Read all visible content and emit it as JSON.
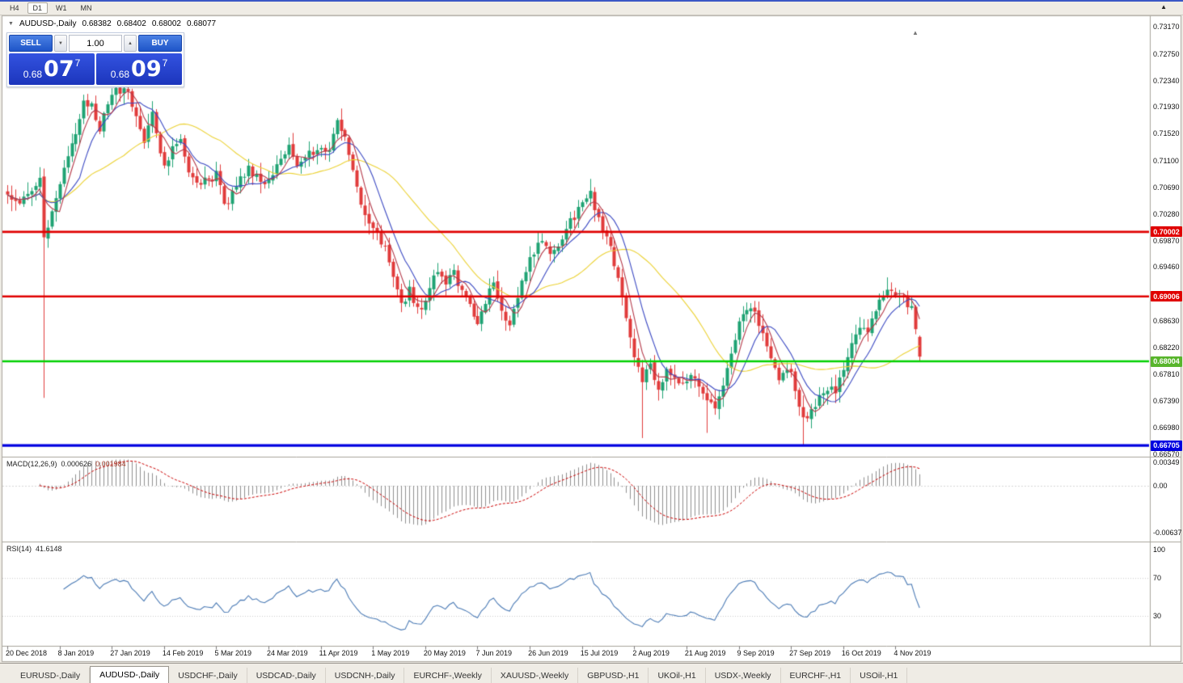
{
  "toolbar": {
    "timeframes": [
      {
        "label": "H4",
        "active": false
      },
      {
        "label": "D1",
        "active": true
      },
      {
        "label": "W1",
        "active": false
      },
      {
        "label": "MN",
        "active": false
      }
    ]
  },
  "icons": {
    "collapse": "▼",
    "spin_up": "▲",
    "spin_down": "▼",
    "shift_marker": "▲",
    "corner": "▲"
  },
  "chart_header": {
    "symbol": "AUDUSD-,Daily",
    "open": "0.68382",
    "high": "0.68402",
    "low": "0.68002",
    "close": "0.68077"
  },
  "trade_panel": {
    "sell_label": "SELL",
    "buy_label": "BUY",
    "volume": "1.00",
    "sell_price_prefix": "0.68",
    "sell_price_big": "07",
    "sell_price_sup": "7",
    "buy_price_prefix": "0.68",
    "buy_price_big": "09",
    "buy_price_sup": "7"
  },
  "tabs": [
    {
      "label": "EURUSD-,Daily",
      "active": false
    },
    {
      "label": "AUDUSD-,Daily",
      "active": true
    },
    {
      "label": "USDCHF-,Daily",
      "active": false
    },
    {
      "label": "USDCAD-,Daily",
      "active": false
    },
    {
      "label": "USDCNH-,Daily",
      "active": false
    },
    {
      "label": "EURCHF-,Weekly",
      "active": false
    },
    {
      "label": "XAUUSD-,Weekly",
      "active": false
    },
    {
      "label": "GBPUSD-,H1",
      "active": false
    },
    {
      "label": "UKOil-,H1",
      "active": false
    },
    {
      "label": "USDX-,Weekly",
      "active": false
    },
    {
      "label": "EURCHF-,H1",
      "active": false
    },
    {
      "label": "USOil-,H1",
      "active": false
    }
  ],
  "chart_data": {
    "type": "candlestick",
    "title": "AUDUSD-,Daily",
    "bars_total": 228,
    "bars_per_label": 13,
    "x_axis_labels": [
      "20 Dec 2018",
      "8 Jan 2019",
      "27 Jan 2019",
      "14 Feb 2019",
      "5 Mar 2019",
      "24 Mar 2019",
      "11 Apr 2019",
      "1 May 2019",
      "20 May 2019",
      "7 Jun 2019",
      "26 Jun 2019",
      "15 Jul 2019",
      "2 Aug 2019",
      "21 Aug 2019",
      "9 Sep 2019",
      "27 Sep 2019",
      "16 Oct 2019",
      "4 Nov 2019"
    ],
    "y_axis_labels": [
      "0.73170",
      "0.72750",
      "0.72340",
      "0.71930",
      "0.71520",
      "0.71100",
      "0.70690",
      "0.70280",
      "0.69870",
      "0.69460",
      "0.69040",
      "0.68630",
      "0.68220",
      "0.67810",
      "0.67390",
      "0.66980",
      "0.66570"
    ],
    "y_axis_top_value": 0.7317,
    "y_axis_bottom_value": 0.6657,
    "last_bar": {
      "open": 0.68382,
      "high": 0.68402,
      "low": 0.68002,
      "close": 0.68077
    },
    "up_color": "#1fa373",
    "down_color": "#e13b3b",
    "close_waypoints": [
      [
        0,
        0.7058
      ],
      [
        3,
        0.7042
      ],
      [
        6,
        0.7068
      ],
      [
        8,
        0.7078
      ],
      [
        9,
        0.6985
      ],
      [
        10,
        0.7012
      ],
      [
        12,
        0.705
      ],
      [
        13,
        0.7068
      ],
      [
        15,
        0.7122
      ],
      [
        17,
        0.7156
      ],
      [
        19,
        0.72
      ],
      [
        21,
        0.7196
      ],
      [
        23,
        0.7162
      ],
      [
        25,
        0.7192
      ],
      [
        26,
        0.7214
      ],
      [
        28,
        0.722
      ],
      [
        30,
        0.7218
      ],
      [
        32,
        0.7178
      ],
      [
        34,
        0.7142
      ],
      [
        36,
        0.7186
      ],
      [
        38,
        0.7128
      ],
      [
        39,
        0.7108
      ],
      [
        41,
        0.7126
      ],
      [
        43,
        0.714
      ],
      [
        45,
        0.7092
      ],
      [
        47,
        0.7072
      ],
      [
        49,
        0.7086
      ],
      [
        51,
        0.7078
      ],
      [
        52,
        0.709
      ],
      [
        54,
        0.7042
      ],
      [
        56,
        0.7058
      ],
      [
        58,
        0.7084
      ],
      [
        60,
        0.7098
      ],
      [
        62,
        0.7088
      ],
      [
        64,
        0.7078
      ],
      [
        66,
        0.709
      ],
      [
        68,
        0.7118
      ],
      [
        70,
        0.7128
      ],
      [
        72,
        0.7096
      ],
      [
        74,
        0.7112
      ],
      [
        76,
        0.7126
      ],
      [
        78,
        0.7136
      ],
      [
        80,
        0.7126
      ],
      [
        82,
        0.7168
      ],
      [
        84,
        0.7146
      ],
      [
        86,
        0.7096
      ],
      [
        88,
        0.7036
      ],
      [
        90,
        0.7016
      ],
      [
        92,
        0.6996
      ],
      [
        94,
        0.6972
      ],
      [
        96,
        0.6928
      ],
      [
        98,
        0.6888
      ],
      [
        100,
        0.691
      ],
      [
        102,
        0.6884
      ],
      [
        103,
        0.6876
      ],
      [
        105,
        0.6916
      ],
      [
        107,
        0.6936
      ],
      [
        109,
        0.6924
      ],
      [
        111,
        0.6936
      ],
      [
        113,
        0.6908
      ],
      [
        115,
        0.6888
      ],
      [
        117,
        0.6858
      ],
      [
        119,
        0.6896
      ],
      [
        121,
        0.692
      ],
      [
        123,
        0.6878
      ],
      [
        125,
        0.686
      ],
      [
        127,
        0.69
      ],
      [
        129,
        0.6944
      ],
      [
        131,
        0.6972
      ],
      [
        133,
        0.699
      ],
      [
        135,
        0.697
      ],
      [
        137,
        0.698
      ],
      [
        139,
        0.7008
      ],
      [
        141,
        0.7024
      ],
      [
        143,
        0.704
      ],
      [
        145,
        0.7062
      ],
      [
        146,
        0.704
      ],
      [
        148,
        0.7004
      ],
      [
        150,
        0.6972
      ],
      [
        152,
        0.693
      ],
      [
        154,
        0.687
      ],
      [
        156,
        0.68
      ],
      [
        158,
        0.6775
      ],
      [
        160,
        0.6798
      ],
      [
        162,
        0.6758
      ],
      [
        164,
        0.6786
      ],
      [
        166,
        0.6772
      ],
      [
        168,
        0.6762
      ],
      [
        170,
        0.678
      ],
      [
        172,
        0.6762
      ],
      [
        174,
        0.6744
      ],
      [
        176,
        0.6722
      ],
      [
        178,
        0.676
      ],
      [
        180,
        0.6808
      ],
      [
        182,
        0.6856
      ],
      [
        184,
        0.6884
      ],
      [
        186,
        0.6872
      ],
      [
        188,
        0.6842
      ],
      [
        190,
        0.68
      ],
      [
        192,
        0.6772
      ],
      [
        194,
        0.6794
      ],
      [
        196,
        0.676
      ],
      [
        198,
        0.6712
      ],
      [
        200,
        0.6722
      ],
      [
        202,
        0.6748
      ],
      [
        204,
        0.676
      ],
      [
        206,
        0.6752
      ],
      [
        208,
        0.679
      ],
      [
        210,
        0.683
      ],
      [
        212,
        0.6856
      ],
      [
        214,
        0.6842
      ],
      [
        216,
        0.688
      ],
      [
        218,
        0.6906
      ],
      [
        220,
        0.6916
      ],
      [
        221,
        0.6908
      ],
      [
        223,
        0.6896
      ],
      [
        225,
        0.6884
      ],
      [
        226,
        0.6845
      ],
      [
        227,
        0.68077
      ]
    ],
    "special_lows": [
      [
        9,
        0.6744
      ],
      [
        158,
        0.6682
      ],
      [
        174,
        0.669
      ],
      [
        198,
        0.6671
      ]
    ],
    "special_highs": [
      [
        19,
        0.7212
      ],
      [
        28,
        0.7229
      ],
      [
        82,
        0.7176
      ],
      [
        145,
        0.7082
      ],
      [
        219,
        0.693
      ]
    ],
    "moving_averages": [
      {
        "period": 30,
        "color": "#ecd234"
      },
      {
        "period": 10,
        "color": "#3b49c3"
      },
      {
        "period": 5,
        "color": "#b43848"
      }
    ],
    "hlines": [
      {
        "price": 0.70002,
        "label": "0.70002",
        "color": "#e00000",
        "tag_bg": "#e00000",
        "tag_fg": "#ffffff",
        "width": 2.6
      },
      {
        "price": 0.69006,
        "label": "0.69006",
        "color": "#e00000",
        "tag_bg": "#e00000",
        "tag_fg": "#ffffff",
        "width": 2.6
      },
      {
        "price": 0.68004,
        "label": "0.68004",
        "color": "#00d000",
        "tag_bg": "#58b52c",
        "tag_fg": "#ffffff",
        "width": 2.6
      },
      {
        "price": 0.66705,
        "label": "0.66705",
        "color": "#0000e0",
        "tag_bg": "#0000e0",
        "tag_fg": "#ffffff",
        "width": 3.2
      }
    ],
    "macd": {
      "label": "MACD(12,26,9)",
      "value_main": "0.000626",
      "value_signal": "0.001984",
      "fast": 12,
      "slow": 26,
      "signal": 9,
      "axis_labels": [
        "0.00349",
        "0.00",
        "-0.00637"
      ],
      "axis_values": [
        0.00349,
        0.0,
        -0.00637
      ],
      "histogram_color": "#8f8f8f",
      "signal_color": "#cc0000"
    },
    "rsi": {
      "label": "RSI(14)",
      "value": "41.6148",
      "period": 14,
      "axis_labels": [
        "100",
        "70",
        "30"
      ],
      "axis_values": [
        100,
        70,
        30
      ],
      "line_color": "#4a7ab5",
      "level_color": "#cccccc"
    }
  }
}
